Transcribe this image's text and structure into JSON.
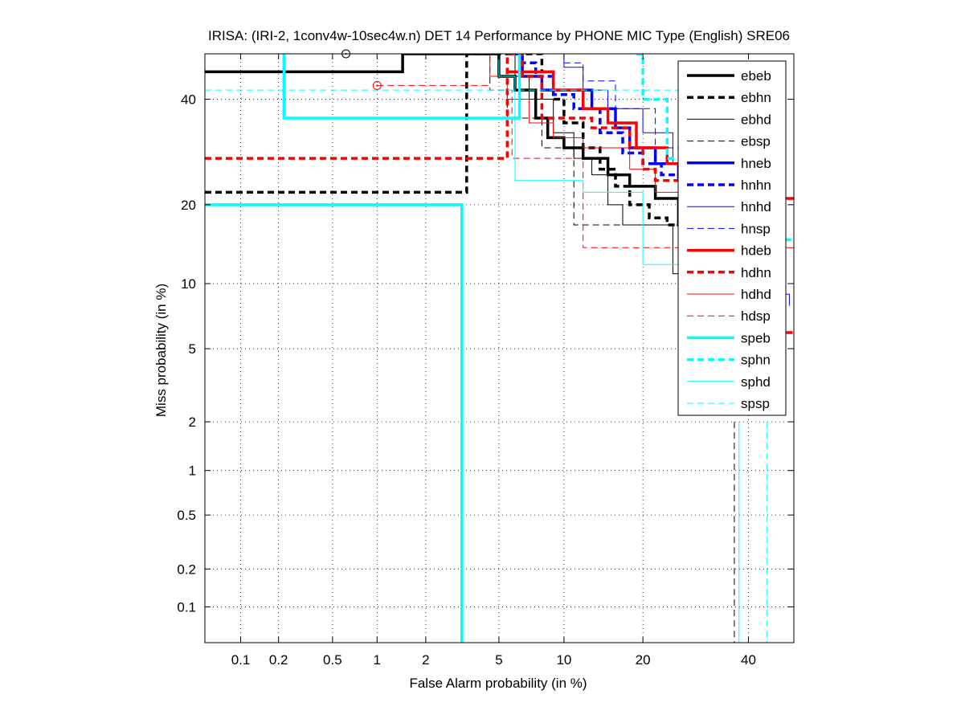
{
  "chart_data": {
    "type": "line",
    "title": "IRISA: (IRI-2, 1conv4w-10sec4w.n) DET 14 Performance by PHONE MIC Type (English) SRE06",
    "xlabel": "False Alarm probability (in %)",
    "ylabel": "Miss probability (in %)",
    "x_scale": "probit",
    "y_scale": "probit",
    "xlim": [
      0.05,
      50
    ],
    "ylim": [
      0.05,
      50
    ],
    "x_ticks": [
      {
        "value": 0.1,
        "label": "0.1"
      },
      {
        "value": 0.2,
        "label": "0.2"
      },
      {
        "value": 0.5,
        "label": "0.5"
      },
      {
        "value": 1,
        "label": "1"
      },
      {
        "value": 2,
        "label": "2"
      },
      {
        "value": 5,
        "label": "5"
      },
      {
        "value": 10,
        "label": "10"
      },
      {
        "value": 20,
        "label": "20"
      },
      {
        "value": 40,
        "label": "40"
      }
    ],
    "y_ticks": [
      {
        "value": 0.1,
        "label": "0.1"
      },
      {
        "value": 0.2,
        "label": "0.2"
      },
      {
        "value": 0.5,
        "label": "0.5"
      },
      {
        "value": 1,
        "label": "1"
      },
      {
        "value": 2,
        "label": "2"
      },
      {
        "value": 5,
        "label": "5"
      },
      {
        "value": 10,
        "label": "10"
      },
      {
        "value": 20,
        "label": "20"
      },
      {
        "value": 40,
        "label": "40"
      }
    ],
    "grid": true,
    "legend_position": "top-right",
    "series": [
      {
        "name": "ebeb",
        "color": "#000000",
        "width": 3.5,
        "dash": "solid",
        "points": [
          [
            0.05,
            46
          ],
          [
            1.45,
            46
          ],
          [
            1.45,
            50
          ],
          [
            5,
            50
          ],
          [
            5,
            45
          ],
          [
            6,
            45
          ],
          [
            6,
            42
          ],
          [
            7.5,
            42
          ],
          [
            7.5,
            36
          ],
          [
            8.5,
            36
          ],
          [
            8.5,
            32
          ],
          [
            10,
            32
          ],
          [
            10,
            30
          ],
          [
            12,
            30
          ],
          [
            12,
            28
          ],
          [
            15,
            28
          ],
          [
            15,
            25
          ],
          [
            18,
            25
          ],
          [
            18,
            23
          ],
          [
            22,
            23
          ],
          [
            22,
            21
          ],
          [
            26,
            21
          ],
          [
            26,
            17
          ],
          [
            28,
            17
          ]
        ]
      },
      {
        "name": "ebhn",
        "color": "#000000",
        "width": 3.5,
        "dash": "8,5",
        "points": [
          [
            0.05,
            22
          ],
          [
            3.4,
            22
          ],
          [
            3.4,
            50
          ],
          [
            8,
            50
          ],
          [
            8,
            46
          ],
          [
            9,
            46
          ],
          [
            9,
            40
          ],
          [
            10,
            40
          ],
          [
            10,
            35
          ],
          [
            12,
            35
          ],
          [
            12,
            30
          ],
          [
            14,
            30
          ],
          [
            14,
            26
          ],
          [
            16,
            26
          ],
          [
            16,
            23
          ],
          [
            18,
            23
          ],
          [
            18,
            20
          ],
          [
            21,
            20
          ],
          [
            21,
            18
          ],
          [
            24,
            18
          ],
          [
            24,
            17
          ],
          [
            27,
            17
          ],
          [
            27,
            16
          ],
          [
            30,
            16
          ]
        ]
      },
      {
        "name": "ebhd",
        "color": "#000000",
        "width": 1,
        "dash": "solid",
        "points": [
          [
            5,
            50
          ],
          [
            6,
            50
          ],
          [
            6,
            45
          ],
          [
            7,
            45
          ],
          [
            7,
            40
          ],
          [
            9,
            40
          ],
          [
            9,
            33
          ],
          [
            11,
            33
          ],
          [
            11,
            28
          ],
          [
            13,
            28
          ],
          [
            13,
            25
          ],
          [
            15,
            25
          ],
          [
            15,
            20
          ],
          [
            17,
            20
          ],
          [
            17,
            17
          ],
          [
            25,
            17
          ],
          [
            25,
            11
          ],
          [
            29,
            11
          ],
          [
            29,
            10
          ]
        ]
      },
      {
        "name": "ebsp",
        "color": "#000000",
        "width": 1,
        "dash": "8,5",
        "points": [
          [
            0.62,
            50
          ],
          [
            4.5,
            50
          ],
          [
            4.5,
            42
          ],
          [
            5.5,
            42
          ],
          [
            5.5,
            36
          ],
          [
            8,
            36
          ],
          [
            8,
            30
          ],
          [
            11,
            30
          ],
          [
            11,
            17
          ],
          [
            26,
            17
          ],
          [
            26,
            16
          ],
          [
            30,
            16
          ]
        ],
        "extra": [
          [
            37,
            2
          ],
          [
            37,
            0.05
          ]
        ]
      },
      {
        "name": "hneb",
        "color": "#0000ff",
        "width": 3.5,
        "dash": "solid",
        "points": [
          [
            6,
            50
          ],
          [
            6.5,
            50
          ],
          [
            6.5,
            45
          ],
          [
            8,
            45
          ],
          [
            8,
            42
          ],
          [
            13,
            42
          ],
          [
            13,
            38
          ],
          [
            16,
            38
          ],
          [
            16,
            34
          ],
          [
            18,
            34
          ],
          [
            18,
            30
          ],
          [
            22,
            30
          ],
          [
            22,
            27
          ],
          [
            26,
            27
          ],
          [
            26,
            24
          ],
          [
            30,
            24
          ]
        ]
      },
      {
        "name": "hnhn",
        "color": "#0000ff",
        "width": 3.5,
        "dash": "8,5",
        "points": [
          [
            6.3,
            48
          ],
          [
            7.5,
            48
          ],
          [
            7.5,
            45
          ],
          [
            9,
            45
          ],
          [
            9,
            41
          ],
          [
            11,
            41
          ],
          [
            11,
            38
          ],
          [
            14,
            38
          ],
          [
            14,
            33
          ],
          [
            17,
            33
          ],
          [
            17,
            29
          ],
          [
            20,
            29
          ],
          [
            20,
            27
          ],
          [
            23,
            27
          ],
          [
            23,
            25
          ],
          [
            27,
            25
          ]
        ]
      },
      {
        "name": "hnhd",
        "color": "#0000ff",
        "width": 1,
        "dash": "solid",
        "points": [
          [
            8,
            50
          ],
          [
            10,
            50
          ],
          [
            10,
            47
          ],
          [
            12,
            47
          ],
          [
            12,
            42
          ],
          [
            15,
            42
          ],
          [
            15,
            38
          ],
          [
            20,
            38
          ],
          [
            20,
            33
          ],
          [
            25,
            33
          ],
          [
            25,
            27
          ],
          [
            30,
            27
          ]
        ],
        "extra": [
          [
            48,
            10
          ],
          [
            48,
            9
          ],
          [
            49,
            9
          ],
          [
            49,
            8
          ]
        ]
      },
      {
        "name": "hnsp",
        "color": "#0000ff",
        "width": 1,
        "dash": "8,5",
        "points": [
          [
            10,
            48
          ],
          [
            12,
            48
          ],
          [
            12,
            44
          ],
          [
            16,
            44
          ],
          [
            16,
            38
          ],
          [
            22,
            38
          ],
          [
            22,
            30
          ],
          [
            26,
            30
          ],
          [
            26,
            26
          ],
          [
            30,
            26
          ]
        ]
      },
      {
        "name": "hdeb",
        "color": "#ff0000",
        "width": 3.5,
        "dash": "solid",
        "points": [
          [
            5.5,
            46
          ],
          [
            9,
            46
          ],
          [
            9,
            42
          ],
          [
            12,
            42
          ],
          [
            12,
            38
          ],
          [
            15,
            38
          ],
          [
            15,
            35
          ],
          [
            19,
            35
          ],
          [
            19,
            30
          ],
          [
            24,
            30
          ],
          [
            24,
            27
          ],
          [
            28,
            27
          ]
        ],
        "extra": [
          [
            45,
            21
          ],
          [
            50,
            21
          ]
        ]
      },
      {
        "name": "hdhn",
        "color": "#ff0000",
        "width": 3.5,
        "dash": "8,5",
        "points": [
          [
            0.05,
            28
          ],
          [
            5.5,
            28
          ],
          [
            5.5,
            50
          ],
          [
            6.5,
            50
          ],
          [
            6.5,
            45
          ],
          [
            8,
            45
          ],
          [
            8,
            36
          ],
          [
            13,
            36
          ],
          [
            13,
            34
          ],
          [
            18,
            34
          ],
          [
            18,
            30
          ],
          [
            20,
            30
          ],
          [
            20,
            26
          ],
          [
            22,
            26
          ],
          [
            22,
            24
          ],
          [
            28,
            24
          ]
        ],
        "extra": [
          [
            46,
            6
          ],
          [
            50,
            6
          ]
        ]
      },
      {
        "name": "hdhd",
        "color": "#ff0000",
        "width": 1,
        "dash": "solid",
        "points": [
          [
            4,
            50
          ],
          [
            4.5,
            50
          ],
          [
            4.5,
            45
          ],
          [
            5.5,
            45
          ],
          [
            5.5,
            40
          ],
          [
            7,
            40
          ],
          [
            7,
            35
          ],
          [
            9,
            35
          ],
          [
            9,
            32
          ],
          [
            12,
            32
          ],
          [
            12,
            30
          ],
          [
            18,
            30
          ],
          [
            18,
            26
          ],
          [
            22,
            26
          ],
          [
            22,
            22
          ],
          [
            30,
            22
          ]
        ],
        "extra": [
          [
            48,
            14
          ],
          [
            50,
            14
          ],
          [
            50,
            12
          ]
        ]
      },
      {
        "name": "hdsp",
        "color": "#ff0000",
        "width": 1,
        "dash": "8,5",
        "points": [
          [
            1,
            43
          ],
          [
            4.5,
            43
          ],
          [
            4.5,
            42
          ],
          [
            5.8,
            42
          ],
          [
            5.8,
            28
          ],
          [
            12,
            28
          ],
          [
            12,
            14
          ],
          [
            28,
            14
          ],
          [
            28,
            13
          ],
          [
            30,
            13
          ]
        ]
      },
      {
        "name": "speb",
        "color": "#00ffff",
        "width": 3.5,
        "dash": "solid",
        "points": [
          [
            0.22,
            50
          ],
          [
            0.22,
            36
          ],
          [
            6.3,
            36
          ],
          [
            6.3,
            50
          ]
        ],
        "extra": [
          [
            0.05,
            20
          ],
          [
            3.2,
            20
          ],
          [
            3.2,
            0.05
          ]
        ]
      },
      {
        "name": "sphn",
        "color": "#00ffff",
        "width": 3.5,
        "dash": "8,5",
        "points": [
          [
            19,
            50
          ],
          [
            20,
            50
          ],
          [
            20,
            40
          ],
          [
            24,
            40
          ],
          [
            24,
            28
          ],
          [
            27,
            28
          ],
          [
            27,
            22
          ],
          [
            29,
            22
          ]
        ],
        "extra": [
          [
            48,
            15
          ],
          [
            50,
            15
          ]
        ]
      },
      {
        "name": "sphd",
        "color": "#00ffff",
        "width": 1,
        "dash": "solid",
        "points": [
          [
            3.8,
            50
          ],
          [
            5,
            50
          ],
          [
            5,
            45
          ],
          [
            6,
            45
          ],
          [
            6,
            24
          ],
          [
            12,
            24
          ],
          [
            12,
            22
          ],
          [
            20,
            22
          ],
          [
            20,
            12
          ],
          [
            26,
            12
          ],
          [
            26,
            11
          ],
          [
            30,
            11
          ]
        ],
        "extra": [
          [
            38,
            2
          ],
          [
            38,
            0.05
          ]
        ]
      },
      {
        "name": "spsp",
        "color": "#00ffff",
        "width": 1,
        "dash": "8,5",
        "points": [
          [
            0.05,
            42
          ],
          [
            1.5,
            42
          ],
          [
            1.5,
            42
          ],
          [
            30,
            42
          ]
        ],
        "extra": [
          [
            44,
            2
          ],
          [
            44,
            0.05
          ]
        ]
      }
    ],
    "markers": [
      {
        "x": 0.62,
        "y": 50,
        "color": "#000000"
      },
      {
        "x": 1.0,
        "y": 43,
        "color": "#ff0000"
      }
    ]
  }
}
